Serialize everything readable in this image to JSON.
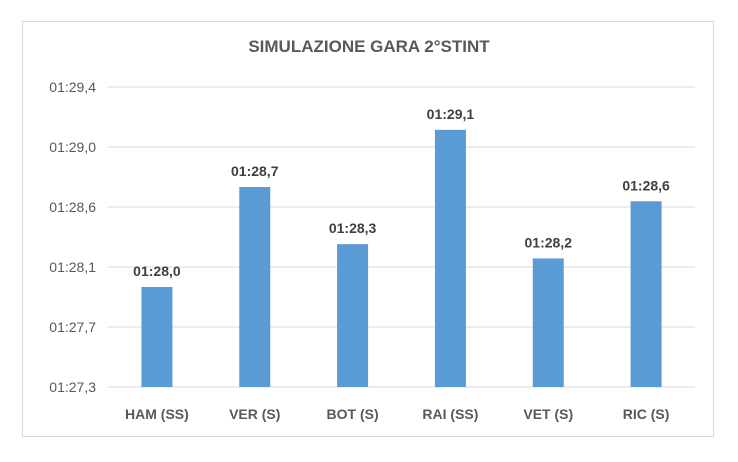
{
  "chart_data": {
    "type": "bar",
    "title": "SIMULAZIONE GARA 2°STINT",
    "xlabel": "",
    "ylabel": "",
    "categories": [
      "HAM (SS)",
      "VER (S)",
      "BOT (S)",
      "RAI (SS)",
      "VET (S)",
      "RIC (S)"
    ],
    "values_seconds": [
      88.0,
      88.7,
      88.3,
      89.1,
      88.2,
      88.6
    ],
    "data_labels": [
      "01:28,0",
      "01:28,7",
      "01:28,3",
      "01:29,1",
      "01:28,2",
      "01:28,6"
    ],
    "y_ticks": [
      "01:27,3",
      "01:27,7",
      "01:28,1",
      "01:28,6",
      "01:29,0",
      "01:29,4"
    ],
    "ylim_seconds": [
      87.3,
      89.4
    ],
    "grid": true,
    "legend": "none",
    "bar_color": "#5b9bd5",
    "grid_color": "#d9d9d9"
  }
}
